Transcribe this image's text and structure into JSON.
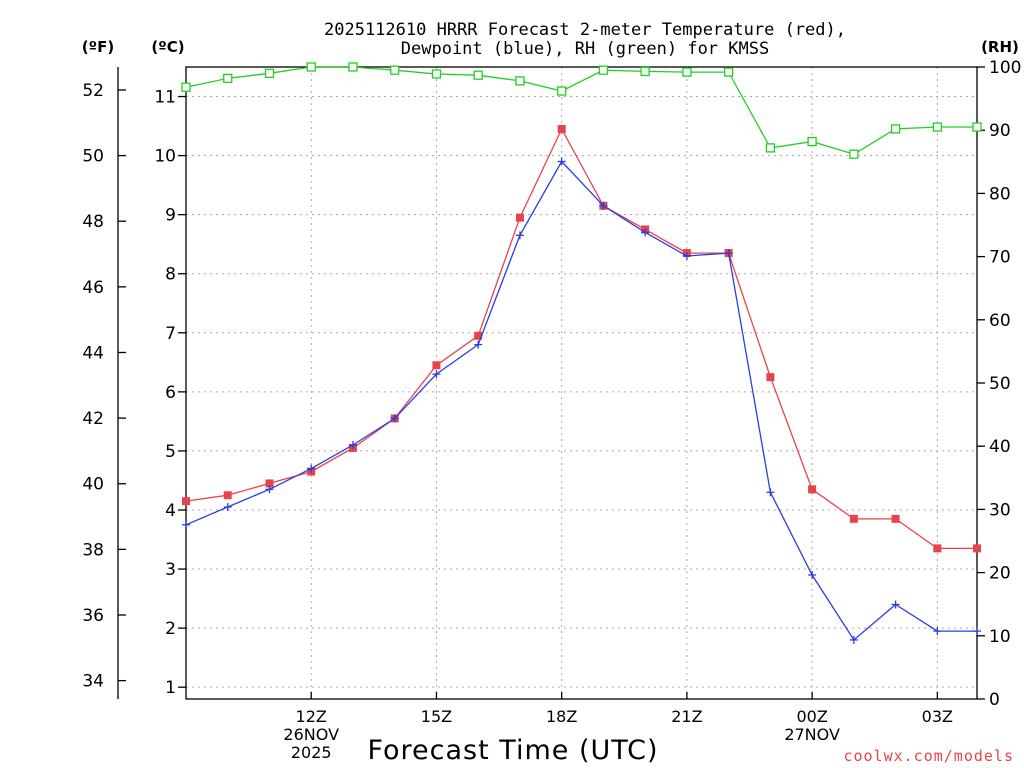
{
  "chart_data": {
    "type": "line",
    "title": "2025112610 HRRR Forecast 2-meter Temperature (red),",
    "subtitle": "Dewpoint (blue), RH (green) for KMSS",
    "xlabel": "Forecast Time (UTC)",
    "credit": "coolwx.com/models",
    "units": {
      "fahrenheit": "(ºF)",
      "celsius": "(ºC)",
      "rh": "(RH)"
    },
    "x_hours": [
      9,
      10,
      11,
      12,
      13,
      14,
      15,
      16,
      17,
      18,
      19,
      20,
      21,
      22,
      23,
      24,
      25,
      26,
      27,
      27.95
    ],
    "xlim": [
      9,
      27.95
    ],
    "celsius_range": [
      0.8,
      11.5
    ],
    "fahrenheit_ticks": [
      "34",
      "36",
      "38",
      "40",
      "42",
      "44",
      "46",
      "48",
      "50",
      "52"
    ],
    "celsius_ticks": [
      "1",
      "2",
      "3",
      "4",
      "5",
      "6",
      "7",
      "8",
      "9",
      "10",
      "11"
    ],
    "rh_ticks": [
      "0",
      "10",
      "20",
      "30",
      "40",
      "50",
      "60",
      "70",
      "80",
      "90",
      "100"
    ],
    "x_ticks": [
      {
        "hour": 12,
        "lines": [
          "12Z",
          "26NOV",
          "2025"
        ]
      },
      {
        "hour": 15,
        "lines": [
          "15Z"
        ]
      },
      {
        "hour": 18,
        "lines": [
          "18Z"
        ]
      },
      {
        "hour": 21,
        "lines": [
          "21Z"
        ]
      },
      {
        "hour": 24,
        "lines": [
          "00Z",
          "27NOV"
        ]
      },
      {
        "hour": 27,
        "lines": [
          "03Z"
        ]
      }
    ],
    "series": [
      {
        "name": "Temperature",
        "color": "#e8434a",
        "marker": "filled-square",
        "unit": "celsius",
        "values": [
          4.15,
          4.25,
          4.45,
          4.65,
          5.05,
          5.55,
          6.45,
          6.95,
          8.95,
          10.45,
          9.15,
          8.75,
          8.35,
          8.35,
          6.25,
          4.35,
          3.85,
          3.85,
          3.35,
          3.35
        ]
      },
      {
        "name": "Dewpoint",
        "color": "#2a3fe0",
        "marker": "plus",
        "unit": "celsius",
        "values": [
          3.75,
          4.05,
          4.35,
          4.7,
          5.1,
          5.55,
          6.3,
          6.8,
          8.65,
          9.9,
          9.15,
          8.7,
          8.3,
          8.35,
          4.3,
          2.9,
          1.8,
          2.4,
          1.95,
          1.95
        ]
      },
      {
        "name": "RH",
        "color": "#22d022",
        "marker": "open-square",
        "unit": "percent",
        "values": [
          96.8,
          98.2,
          99.0,
          100.0,
          100.0,
          99.5,
          98.9,
          98.7,
          97.8,
          96.2,
          99.5,
          99.3,
          99.2,
          99.2,
          87.2,
          88.2,
          86.2,
          90.2,
          90.5,
          90.5
        ]
      }
    ]
  }
}
